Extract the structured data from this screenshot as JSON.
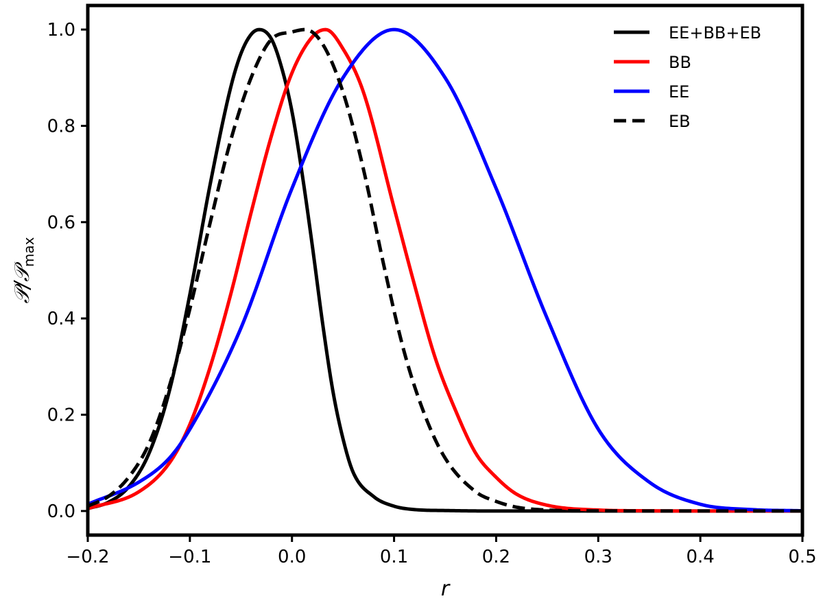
{
  "chart_data": {
    "type": "line",
    "xlabel": "r",
    "ylabel_main": "𝒫/𝒫",
    "ylabel_sub": "max",
    "xlim": [
      -0.2,
      0.5
    ],
    "ylim": [
      -0.05,
      1.05
    ],
    "xticks": [
      -0.2,
      -0.1,
      0.0,
      0.1,
      0.2,
      0.3,
      0.4,
      0.5
    ],
    "xtick_labels": [
      "−0.2",
      "−0.1",
      "0.0",
      "0.1",
      "0.2",
      "0.3",
      "0.4",
      "0.5"
    ],
    "yticks": [
      0.0,
      0.2,
      0.4,
      0.6,
      0.8,
      1.0
    ],
    "ytick_labels": [
      "0.0",
      "0.2",
      "0.4",
      "0.6",
      "0.8",
      "1.0"
    ],
    "legend_position": "top-right",
    "series": [
      {
        "name": "EE+BB+EB",
        "color": "#000000",
        "style": "solid",
        "x": [
          -0.2,
          -0.18,
          -0.16,
          -0.14,
          -0.12,
          -0.1,
          -0.08,
          -0.06,
          -0.05,
          -0.04,
          -0.032,
          -0.02,
          -0.01,
          0.0,
          0.01,
          0.02,
          0.03,
          0.04,
          0.05,
          0.06,
          0.08,
          0.1,
          0.12,
          0.15,
          0.2,
          0.5
        ],
        "values": [
          0.005,
          0.018,
          0.05,
          0.12,
          0.25,
          0.45,
          0.68,
          0.88,
          0.95,
          0.99,
          1.0,
          0.98,
          0.92,
          0.83,
          0.7,
          0.55,
          0.39,
          0.25,
          0.15,
          0.08,
          0.03,
          0.01,
          0.003,
          0.001,
          0.0,
          0.0
        ]
      },
      {
        "name": "BB",
        "color": "#ff0000",
        "style": "solid",
        "x": [
          -0.2,
          -0.15,
          -0.12,
          -0.1,
          -0.08,
          -0.06,
          -0.04,
          -0.02,
          0.0,
          0.02,
          0.033,
          0.05,
          0.07,
          0.1,
          0.12,
          0.14,
          0.16,
          0.18,
          0.2,
          0.22,
          0.25,
          0.3,
          0.35,
          0.4,
          0.5
        ],
        "values": [
          0.005,
          0.04,
          0.1,
          0.18,
          0.3,
          0.45,
          0.62,
          0.78,
          0.91,
          0.985,
          1.0,
          0.96,
          0.87,
          0.63,
          0.47,
          0.32,
          0.21,
          0.12,
          0.07,
          0.035,
          0.012,
          0.002,
          0.0004,
          0.0,
          0.0
        ]
      },
      {
        "name": "EE",
        "color": "#0000ff",
        "style": "solid",
        "x": [
          -0.2,
          -0.15,
          -0.12,
          -0.1,
          -0.05,
          0.0,
          0.05,
          0.1,
          0.15,
          0.2,
          0.25,
          0.3,
          0.35,
          0.4,
          0.45,
          0.5
        ],
        "values": [
          0.014,
          0.06,
          0.11,
          0.17,
          0.38,
          0.67,
          0.9,
          1.0,
          0.9,
          0.67,
          0.4,
          0.17,
          0.06,
          0.014,
          0.003,
          0.0005
        ]
      },
      {
        "name": "EB",
        "color": "#000000",
        "style": "dashed",
        "x": [
          -0.2,
          -0.18,
          -0.16,
          -0.14,
          -0.12,
          -0.1,
          -0.08,
          -0.06,
          -0.04,
          -0.02,
          0.0,
          0.013,
          0.03,
          0.05,
          0.07,
          0.09,
          0.11,
          0.13,
          0.15,
          0.18,
          0.2,
          0.22,
          0.25,
          0.3,
          0.5
        ],
        "values": [
          0.01,
          0.03,
          0.07,
          0.14,
          0.26,
          0.42,
          0.6,
          0.77,
          0.9,
          0.98,
          0.995,
          1.0,
          0.97,
          0.87,
          0.71,
          0.51,
          0.33,
          0.2,
          0.11,
          0.04,
          0.02,
          0.008,
          0.002,
          0.0002,
          0.0
        ]
      }
    ]
  }
}
